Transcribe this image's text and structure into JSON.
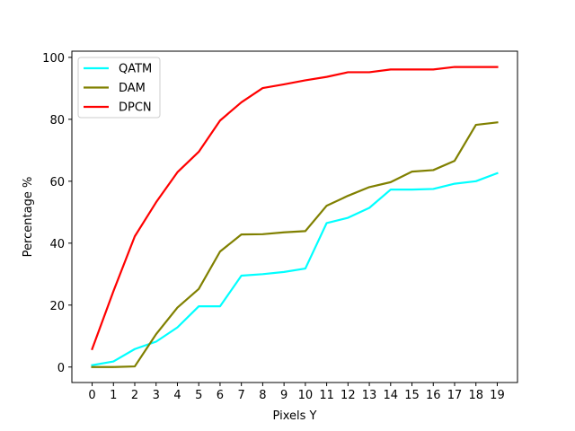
{
  "chart_data": {
    "type": "line",
    "title": "",
    "xlabel": "Pixels Y",
    "ylabel": "Percentage %",
    "x": [
      0,
      1,
      2,
      3,
      4,
      5,
      6,
      7,
      8,
      9,
      10,
      11,
      12,
      13,
      14,
      15,
      16,
      17,
      18,
      19
    ],
    "xlim": [
      -0.95,
      19.95
    ],
    "ylim": [
      -5,
      102
    ],
    "yticks": [
      0,
      20,
      40,
      60,
      80,
      100
    ],
    "grid": false,
    "legend_position": "top-left",
    "series": [
      {
        "name": "QATM",
        "color": "#00ffff",
        "values": [
          0.6,
          1.8,
          5.8,
          8.2,
          12.8,
          19.6,
          19.6,
          29.5,
          30.0,
          30.7,
          31.8,
          46.5,
          48.2,
          51.4,
          57.3,
          57.3,
          57.5,
          59.2,
          60.0,
          62.6
        ]
      },
      {
        "name": "DAM",
        "color": "#808000",
        "values": [
          0.0,
          0.0,
          0.2,
          10.6,
          19.2,
          25.2,
          37.3,
          42.8,
          42.9,
          43.5,
          43.9,
          52.1,
          55.3,
          58.1,
          59.7,
          63.1,
          63.6,
          66.6,
          78.2,
          79.0
        ]
      },
      {
        "name": "DPCN",
        "color": "#ff0000",
        "values": [
          5.8,
          24.5,
          42.2,
          53.2,
          62.9,
          69.5,
          79.6,
          85.5,
          90.1,
          91.3,
          92.6,
          93.7,
          95.2,
          95.2,
          96.1,
          96.1,
          96.1,
          96.9,
          96.9,
          96.9
        ]
      }
    ]
  }
}
